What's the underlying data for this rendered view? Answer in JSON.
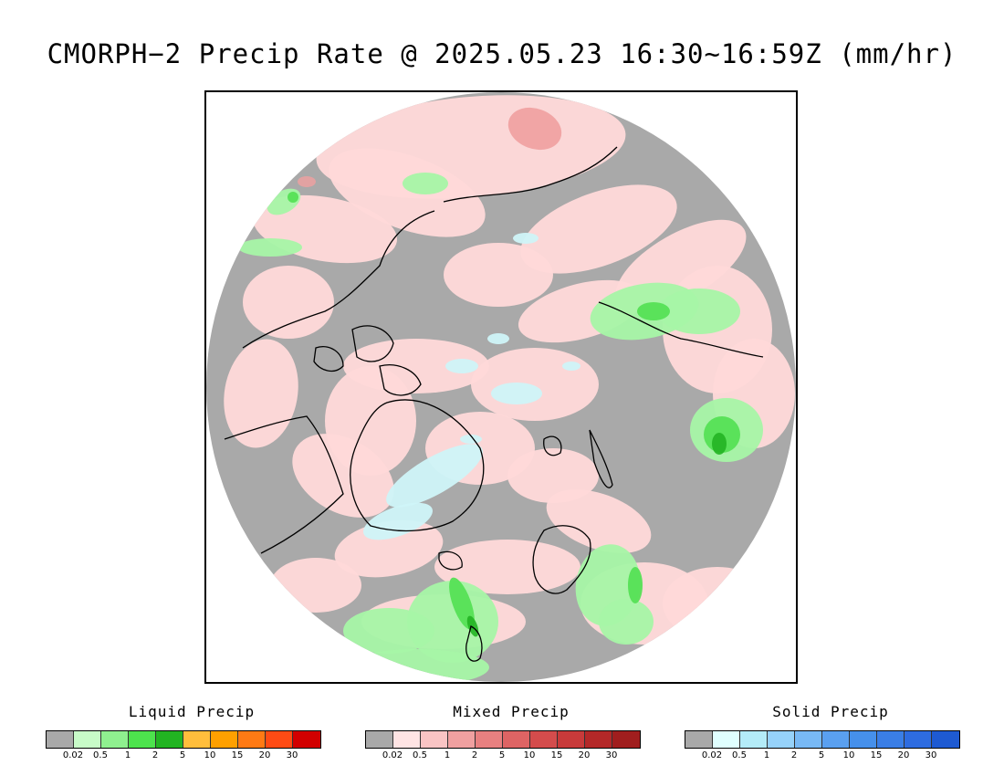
{
  "title": "CMORPH−2 Precip Rate @ 2025.05.23 16:30~16:59Z (mm/hr)",
  "legends": [
    {
      "title": "Liquid Precip",
      "colors": [
        "#a9a9a9",
        "#c8fbc8",
        "#8ff08f",
        "#4de34d",
        "#22b422",
        "#ffbe3c",
        "#ffa000",
        "#ff7a14",
        "#ff4b14",
        "#d20000"
      ],
      "ticks": [
        "0.02",
        "0.5",
        "1",
        "2",
        "5",
        "10",
        "15",
        "20",
        "30"
      ]
    },
    {
      "title": "Mixed Precip",
      "colors": [
        "#a9a9a9",
        "#ffe4e4",
        "#f9c4c4",
        "#f0a0a0",
        "#e88080",
        "#de6464",
        "#d44c4c",
        "#c83a3a",
        "#b42828",
        "#a01e1e"
      ],
      "ticks": [
        "0.02",
        "0.5",
        "1",
        "2",
        "5",
        "10",
        "15",
        "20",
        "30"
      ]
    },
    {
      "title": "Solid Precip",
      "colors": [
        "#a9a9a9",
        "#e0ffff",
        "#b4ecf8",
        "#96d2fa",
        "#78b9f5",
        "#5aa0f0",
        "#4690eb",
        "#3a7ee6",
        "#2e6ce0",
        "#1e5ad2"
      ],
      "ticks": [
        "0.02",
        "0.5",
        "1",
        "2",
        "5",
        "10",
        "15",
        "20",
        "30"
      ]
    }
  ],
  "map": {
    "background_color": "#a9a9a9",
    "mixed_light": "#ffd9d9",
    "mixed_mid": "#f0a0a0",
    "liquid_light": "#a6f5a6",
    "liquid_mid": "#55e055",
    "liquid_dark": "#22b422",
    "solid_light": "#cff4f8",
    "coast_color": "#000000"
  }
}
